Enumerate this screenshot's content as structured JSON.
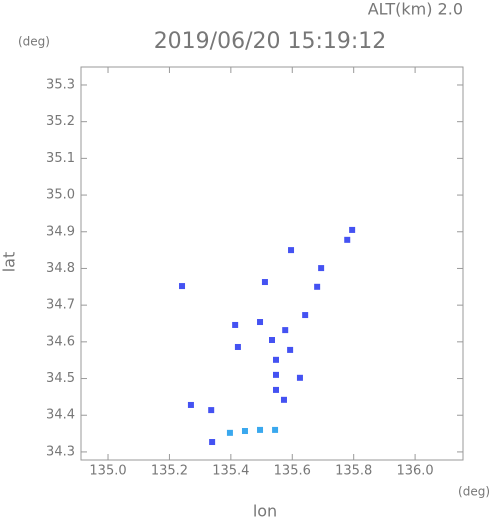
{
  "chart_data": {
    "type": "scatter",
    "title": "2019/06/20 15:19:12",
    "subtitle": "ALT(km) 2.0",
    "x_label": "lon",
    "y_label": "lat",
    "x_unit": "(deg)",
    "y_unit": "(deg)",
    "xlim": [
      134.912,
      136.156
    ],
    "ylim": [
      34.278,
      35.349
    ],
    "xticks": [
      {
        "value": 135,
        "label": "135.0"
      },
      135.2,
      135.4,
      135.6,
      135.8,
      {
        "value": 136,
        "label": "136.0"
      }
    ],
    "yticks": [
      34.3,
      34.4,
      34.5,
      34.6,
      34.7,
      34.8,
      34.9,
      {
        "value": 35,
        "label": "35.0"
      },
      35.1,
      35.2,
      35.3
    ],
    "series": [
      {
        "color": "#4452f2",
        "x": [
          135.241,
          135.27,
          135.336,
          135.339,
          135.414,
          135.495,
          135.547,
          135.547,
          135.547,
          135.534,
          135.573,
          135.593,
          135.625,
          135.642,
          135.577,
          135.596,
          135.511,
          135.423,
          135.694,
          135.779,
          135.795,
          135.681
        ],
        "values": [
          34.752,
          34.428,
          34.414,
          34.327,
          34.646,
          34.654,
          34.551,
          34.51,
          34.469,
          34.605,
          34.442,
          34.578,
          34.502,
          34.673,
          34.632,
          34.85,
          34.763,
          34.586,
          34.801,
          34.878,
          34.905,
          34.75
        ]
      },
      {
        "color": "#3aa8ee",
        "x": [
          135.397,
          135.446,
          135.495,
          135.544
        ],
        "values": [
          34.352,
          34.357,
          34.36,
          34.36
        ]
      }
    ]
  }
}
